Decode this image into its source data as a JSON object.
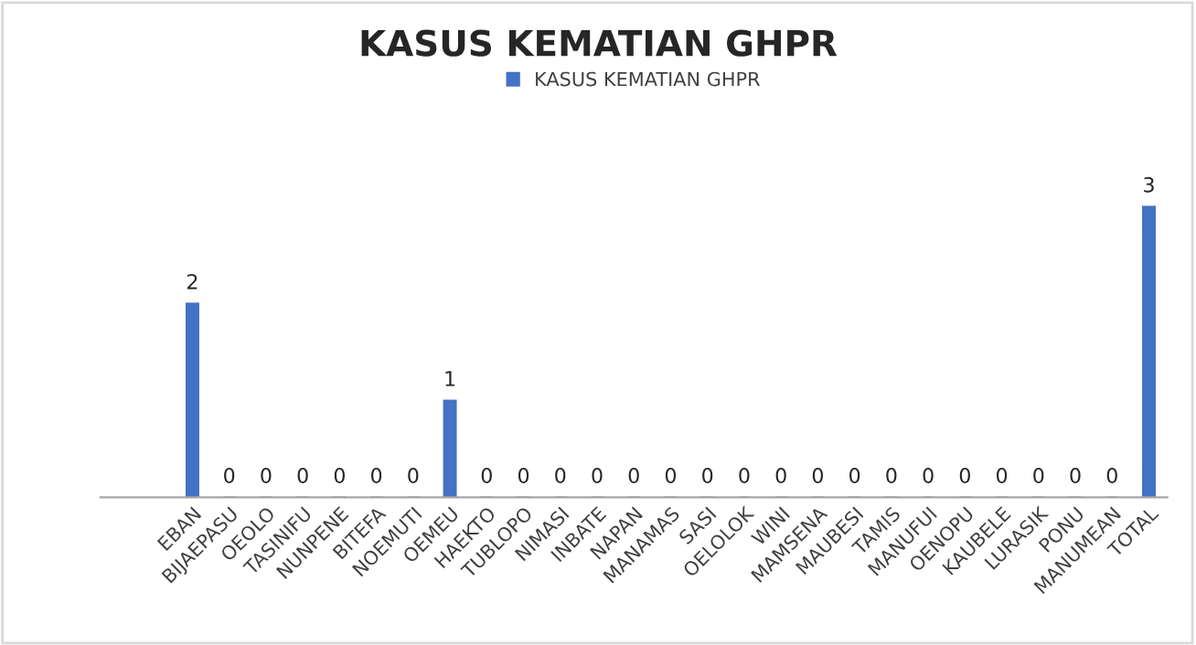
{
  "chart_data": {
    "type": "bar",
    "title": "KASUS KEMATIAN GHPR",
    "categories": [
      null,
      null,
      "EBAN",
      "BIJAEPASU",
      "OEOLO",
      "TASINIFU",
      "NUNPENE",
      "BITEFA",
      "NOEMUTI",
      "OEMEU",
      "HAEKTO",
      "TUBLOPO",
      "NIMASI",
      "INBATE",
      "NAPAN",
      "MANAMAS",
      "SASI",
      "OELOLOK",
      "WINI",
      "MAMSENA",
      "MAUBESI",
      "TAMIS",
      "MANUFUI",
      "OENOPU",
      "KAUBELE",
      "LURASIK",
      "PONU",
      "MANUMEAN",
      "TOTAL"
    ],
    "series": [
      {
        "name": "KASUS KEMATIAN GHPR",
        "color": "#4472c4",
        "values": [
          null,
          null,
          2,
          0,
          0,
          0,
          0,
          0,
          0,
          1,
          0,
          0,
          0,
          0,
          0,
          0,
          0,
          0,
          0,
          0,
          0,
          0,
          0,
          0,
          0,
          0,
          0,
          0,
          3
        ]
      }
    ],
    "data_labels": true,
    "legend": "top",
    "tick_labels": "x",
    "grid": false
  }
}
